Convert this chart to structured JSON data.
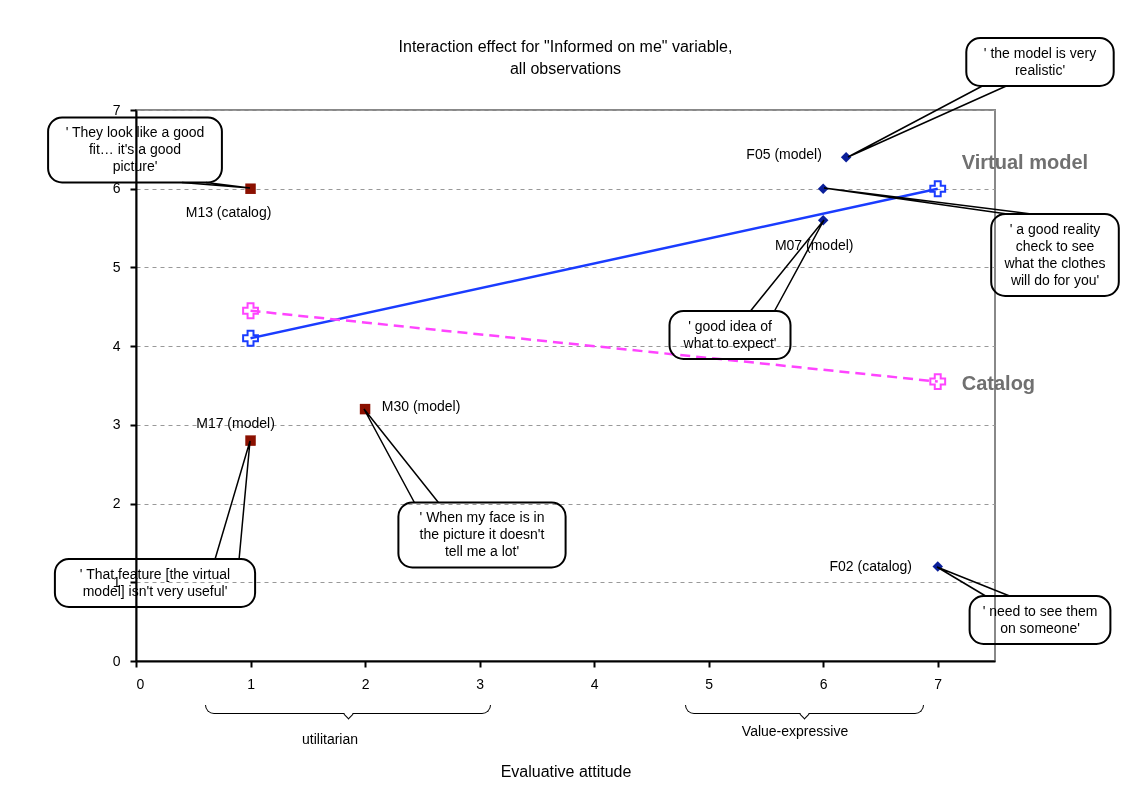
{
  "chart_data": {
    "type": "line",
    "title": "Interaction effect for \"Informed on me\" variable,",
    "subtitle": "all observations",
    "xlabel": "Evaluative attitude",
    "xlim": [
      0,
      7.5
    ],
    "xticks": [
      0,
      1,
      2,
      3,
      4,
      5,
      6,
      7
    ],
    "ylim": [
      0,
      7
    ],
    "yticks": [
      0,
      1,
      2,
      3,
      4,
      5,
      6,
      7
    ],
    "grid": "y",
    "series": [
      {
        "name": "Virtual model",
        "color": "#1a3cff",
        "x": [
          1,
          7
        ],
        "values": [
          4.1,
          6.0
        ],
        "marker": "cross",
        "line_style": "solid"
      },
      {
        "name": "Catalog",
        "color": "#ff44ff",
        "x": [
          1,
          7
        ],
        "values": [
          4.45,
          3.55
        ],
        "marker": "cross",
        "line_style": "dashed"
      },
      {
        "type": "scatter",
        "color": "#8b1000",
        "x": [
          1,
          1,
          2
        ],
        "values": [
          6.0,
          2.8,
          3.2
        ],
        "marker": "square"
      },
      {
        "type": "scatter",
        "color": "#0a1f9a",
        "x": [
          6.2,
          6,
          6,
          7
        ],
        "values": [
          6.4,
          6.0,
          5.6,
          1.2
        ],
        "marker": "diamond"
      }
    ],
    "annotations": [
      "' They look like a good fit… it's a good picture'",
      "' the model is very realistic'",
      "' a good reality check to see what the clothes will do for you'",
      "' good idea of what to expect'",
      "' That feature [the virtual model] isn't very useful'",
      "' When my face is in the picture it doesn't tell me a lot'",
      "' need to see them on someone'",
      {
        "text": "M13 (catalog)",
        "x": 1,
        "y": 6.0
      },
      {
        "text": "M17 (model)",
        "x": 1,
        "y": 2.8
      },
      {
        "text": "M30 (model)",
        "x": 2,
        "y": 3.2
      },
      {
        "text": "F05 (model)",
        "x": 6.2,
        "y": 6.4
      },
      {
        "text": "M07 (model)",
        "x": 6,
        "y": 5.6
      },
      {
        "text": "F02 (catalog)",
        "x": 7,
        "y": 1.2
      },
      "utilitarian",
      "Value-expressive"
    ]
  }
}
